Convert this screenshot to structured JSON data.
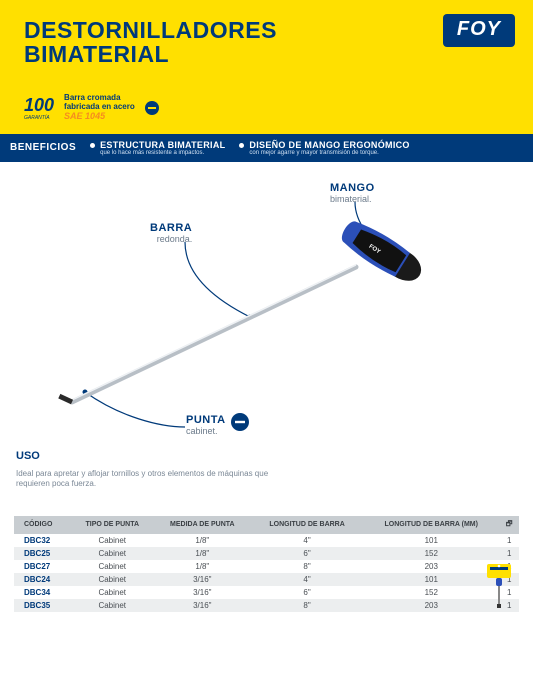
{
  "colors": {
    "yellow": "#ffe000",
    "blue": "#003a7a",
    "orange": "#f68b1f",
    "thead_bg": "#c8cdd1",
    "row_alt": "#eceeef",
    "text_muted": "#7b8896"
  },
  "header": {
    "title_line1": "DESTORNILLADORES",
    "title_line2": "BIMATERIAL",
    "brand": "FOY",
    "badge100": "100",
    "badge100_sub": "GARANTÍA",
    "chrome_line1": "Barra cromada",
    "chrome_line2": "fabricada en acero",
    "chrome_line3": "SAE 1045"
  },
  "benefits": {
    "label": "BENEFICIOS",
    "items": [
      {
        "title": "ESTRUCTURA BIMATERIAL",
        "sub": "que lo hace más resistente a impactos."
      },
      {
        "title": "DISEÑO DE MANGO ERGONÓMICO",
        "sub": "con mejor agarre y mayor transmisión de torque."
      }
    ]
  },
  "diagram": {
    "callouts": {
      "mango": {
        "label": "MANGO",
        "sub": "bimaterial."
      },
      "barra": {
        "label": "BARRA",
        "sub": "redonda."
      },
      "punta": {
        "label": "PUNTA",
        "sub": "cabinet."
      }
    },
    "uso": {
      "heading": "USO",
      "text": "Ideal para apretar y aflojar tornillos y otros elementos de máquinas que requieren poca fuerza."
    }
  },
  "table": {
    "columns": [
      "CÓDIGO",
      "TIPO DE PUNTA",
      "MEDIDA DE PUNTA",
      "LONGITUD DE BARRA",
      "LONGITUD DE BARRA (MM)",
      "🗗"
    ],
    "rows": [
      [
        "DBC32",
        "Cabinet",
        "1/8\"",
        "4\"",
        "101",
        "1"
      ],
      [
        "DBC25",
        "Cabinet",
        "1/8\"",
        "6\"",
        "152",
        "1"
      ],
      [
        "DBC27",
        "Cabinet",
        "1/8\"",
        "8\"",
        "203",
        "1"
      ],
      [
        "DBC24",
        "Cabinet",
        "3/16\"",
        "4\"",
        "101",
        "1"
      ],
      [
        "DBC34",
        "Cabinet",
        "3/16\"",
        "6\"",
        "152",
        "1"
      ],
      [
        "DBC35",
        "Cabinet",
        "3/16\"",
        "8\"",
        "203",
        "1"
      ]
    ]
  }
}
